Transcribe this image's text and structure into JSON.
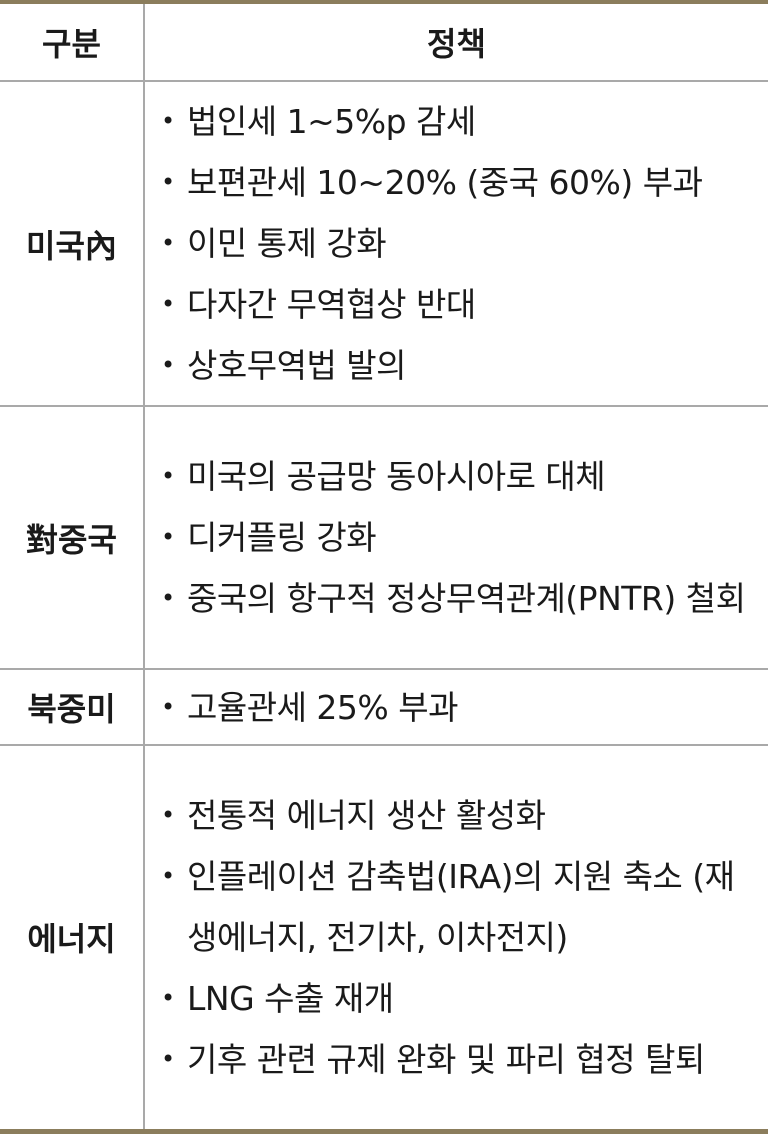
{
  "header": {
    "category": "구분",
    "policy": "정책"
  },
  "rows": [
    {
      "category": "미국內",
      "items": [
        "법인세 1~5%p 감세",
        "보편관세 10~20% (중국 60%) 부과",
        "이민 통제 강화",
        "다자간 무역협상 반대",
        "상호무역법 발의"
      ]
    },
    {
      "category": "對중국",
      "items": [
        "미국의 공급망 동아시아로 대체",
        "디커플링 강화",
        "중국의 항구적 정상무역관계(PNTR) 철회"
      ]
    },
    {
      "category": "북중미",
      "items": [
        "고율관세 25% 부과"
      ]
    },
    {
      "category": "에너지",
      "items": [
        "전통적 에너지 생산 활성화",
        "인플레이션 감축법(IRA)의 지원 축소 (재생에너지, 전기차, 이차전지)",
        "LNG 수출 재개",
        "기후 관련 규제 완화 및 파리 협정 탈퇴"
      ]
    }
  ],
  "colors": {
    "border_accent": "#8b7d5c",
    "grid": "#a9a9a9"
  }
}
